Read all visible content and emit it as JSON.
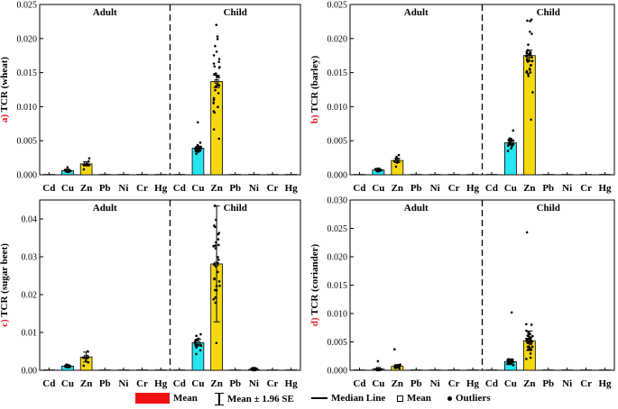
{
  "chart_data": [
    {
      "type": "bar",
      "panel_letter": "a)",
      "ylabel_text": " TCR (wheat)",
      "ylim": [
        0,
        0.025
      ],
      "yticks": [
        "0.000",
        "0.005",
        "0.010",
        "0.015",
        "0.020",
        "0.025"
      ],
      "ytick_values": [
        0,
        0.005,
        0.01,
        0.015,
        0.02,
        0.025
      ],
      "groups": [
        "Adult",
        "Child"
      ],
      "categories": [
        "Cd",
        "Cu",
        "Zn",
        "Pb",
        "Ni",
        "Cr",
        "Hg",
        "Cd",
        "Cu",
        "Zn",
        "Pb",
        "Ni",
        "Cr",
        "Hg"
      ],
      "values": [
        2e-05,
        0.0006,
        0.0016,
        2e-05,
        3e-05,
        2e-05,
        2e-05,
        5e-05,
        0.0039,
        0.0137,
        3e-05,
        7e-05,
        3e-05,
        3e-05
      ],
      "err": [
        0,
        0.0001,
        0.0003,
        0,
        0,
        0,
        0,
        0,
        0.0002,
        0.0009,
        0,
        0,
        0,
        0
      ],
      "outliers_max": [
        0,
        0.0011,
        0.0024,
        0,
        0,
        0,
        0,
        0,
        0.0077,
        0.022,
        0,
        0,
        0,
        0
      ],
      "outliers_min": [
        0,
        0.0004,
        0.0008,
        0,
        0,
        0,
        0,
        0,
        0.0031,
        0.0053,
        0,
        0,
        0,
        0
      ]
    },
    {
      "type": "bar",
      "panel_letter": "b)",
      "ylabel_text": " TCR (barley)",
      "ylim": [
        0,
        0.025
      ],
      "yticks": [
        "0.000",
        "0.005",
        "0.010",
        "0.015",
        "0.020",
        "0.025"
      ],
      "ytick_values": [
        0,
        0.005,
        0.01,
        0.015,
        0.02,
        0.025
      ],
      "groups": [
        "Adult",
        "Child"
      ],
      "categories": [
        "Cd",
        "Cu",
        "Zn",
        "Pb",
        "Ni",
        "Cr",
        "Hg",
        "Cd",
        "Cu",
        "Zn",
        "Pb",
        "Ni",
        "Cr",
        "Hg"
      ],
      "values": [
        2e-05,
        0.0007,
        0.0021,
        2e-05,
        3e-05,
        2e-05,
        2e-05,
        5e-05,
        0.0047,
        0.0175,
        3e-05,
        7e-05,
        3e-05,
        3e-05
      ],
      "err": [
        0,
        0.0001,
        0.0003,
        0,
        0,
        0,
        0,
        0,
        0.0003,
        0.0008,
        0,
        0,
        0,
        0
      ],
      "outliers_max": [
        0,
        0.0009,
        0.0029,
        0,
        0,
        0,
        0,
        0,
        0.0065,
        0.0228,
        0,
        0,
        0,
        0
      ],
      "outliers_min": [
        0,
        0.0005,
        0.0012,
        0,
        0,
        0,
        0,
        0,
        0.0035,
        0.0081,
        0,
        0,
        0,
        0
      ]
    },
    {
      "type": "bar",
      "panel_letter": "c)",
      "ylabel_text": " TCR (sugar beet)",
      "ylim": [
        0,
        0.045
      ],
      "yticks": [
        "0.00",
        "0.01",
        "0.02",
        "0.03",
        "0.04"
      ],
      "ytick_values": [
        0,
        0.01,
        0.02,
        0.03,
        0.04
      ],
      "groups": [
        "Adult",
        "Child"
      ],
      "categories": [
        "Cd",
        "Cu",
        "Zn",
        "Pb",
        "Ni",
        "Cr",
        "Hg",
        "Cd",
        "Cu",
        "Zn",
        "Pb",
        "Ni",
        "Cr",
        "Hg"
      ],
      "values": [
        5e-05,
        0.0011,
        0.0035,
        5e-05,
        8e-05,
        5e-05,
        5e-05,
        0.0001,
        0.0073,
        0.0281,
        0.0001,
        0.0003,
        0.0001,
        0.0001
      ],
      "err": [
        0,
        0.0002,
        0.0013,
        0,
        0,
        0,
        0,
        0,
        0.0009,
        0.0153,
        0,
        0.0001,
        0,
        0
      ],
      "outliers_max": [
        0,
        0.0015,
        0.005,
        0,
        0,
        0,
        0,
        0,
        0.0095,
        0.0435,
        0,
        0.0005,
        0,
        0
      ],
      "outliers_min": [
        0,
        0.0008,
        0.0012,
        0,
        0,
        0,
        0,
        0,
        0.0043,
        0.0072,
        0,
        0.0001,
        0,
        0
      ]
    },
    {
      "type": "bar",
      "panel_letter": "d)",
      "ylabel_text": " TCR (coriander)",
      "ylim": [
        0,
        0.03
      ],
      "yticks": [
        "0.000",
        "0.005",
        "0.010",
        "0.015",
        "0.020",
        "0.025",
        "0.030"
      ],
      "ytick_values": [
        0,
        0.005,
        0.01,
        0.015,
        0.02,
        0.025,
        0.03
      ],
      "groups": [
        "Adult",
        "Child"
      ],
      "categories": [
        "Cd",
        "Cu",
        "Zn",
        "Pb",
        "Ni",
        "Cr",
        "Hg",
        "Cd",
        "Cu",
        "Zn",
        "Pb",
        "Ni",
        "Cr",
        "Hg"
      ],
      "values": [
        2e-05,
        0.0002,
        0.0007,
        2e-05,
        3e-05,
        2e-05,
        2e-05,
        5e-05,
        0.0015,
        0.0052,
        3e-05,
        7e-05,
        3e-05,
        3e-05
      ],
      "err": [
        0,
        0.0001,
        0.0002,
        0,
        0,
        0,
        0,
        0,
        0.0005,
        0.0017,
        0,
        0,
        0,
        0
      ],
      "outliers_max": [
        0,
        0.0016,
        0.0037,
        0,
        0,
        0,
        0,
        0,
        0.0102,
        0.0243,
        0,
        0,
        0,
        0
      ],
      "outliers_min": [
        0,
        0.0001,
        0.0003,
        0,
        0,
        0,
        0,
        0,
        0.0009,
        0.002,
        0,
        0,
        0,
        0
      ]
    }
  ],
  "legend": {
    "mean": "Mean",
    "se": "Mean ± 1.96 SE",
    "median": "Median Line",
    "mean_marker": "Mean",
    "outliers": "Outliers"
  },
  "colors": {
    "Cu": "#27e5f0",
    "Zn": "#f5d90f",
    "other": "#000000",
    "letter": "#e8141b",
    "legend_mean": "#ee1111"
  }
}
